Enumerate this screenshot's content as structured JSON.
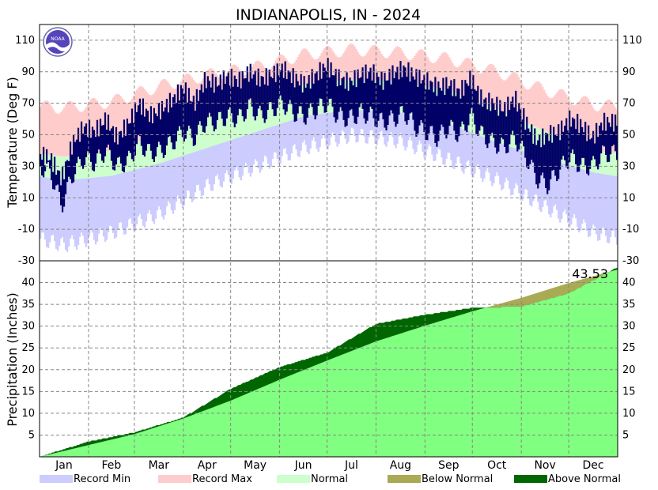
{
  "chart_data": [
    {
      "type": "bar",
      "panel": "temperature",
      "title": "INDIANAPOLIS, IN - 2024",
      "ylabel": "Temperature (Deg F)",
      "ylim": [
        -30,
        120
      ],
      "yticks": [
        -30,
        -10,
        10,
        30,
        50,
        70,
        90,
        110
      ],
      "month_labels": [
        "Jan",
        "Feb",
        "Mar",
        "Apr",
        "May",
        "Jun",
        "Jul",
        "Aug",
        "Sep",
        "Oct",
        "Nov",
        "Dec"
      ],
      "normal_high_by_month": [
        36,
        40,
        51,
        63,
        73,
        82,
        85,
        84,
        78,
        66,
        52,
        40
      ],
      "normal_low_by_month": [
        21,
        24,
        32,
        42,
        52,
        62,
        66,
        64,
        57,
        45,
        35,
        26
      ],
      "record_max_by_month": [
        67,
        71,
        81,
        88,
        93,
        101,
        104,
        102,
        98,
        90,
        78,
        69
      ],
      "record_min_by_month": [
        -20,
        -12,
        0,
        18,
        30,
        42,
        50,
        46,
        34,
        21,
        4,
        -12
      ],
      "observed_high_weekly": [
        38,
        35,
        22,
        45,
        55,
        52,
        60,
        48,
        57,
        70,
        62,
        66,
        72,
        80,
        70,
        85,
        82,
        87,
        84,
        90,
        85,
        88,
        92,
        86,
        82,
        88,
        94,
        86,
        83,
        88,
        90,
        84,
        89,
        92,
        87,
        84,
        80,
        82,
        77,
        86,
        72,
        70,
        66,
        73,
        58,
        46,
        50,
        52,
        60,
        56,
        48,
        58
      ],
      "observed_low_weekly": [
        30,
        26,
        5,
        25,
        35,
        32,
        40,
        30,
        33,
        45,
        38,
        40,
        45,
        52,
        48,
        58,
        58,
        62,
        60,
        68,
        62,
        66,
        70,
        64,
        62,
        66,
        70,
        62,
        60,
        64,
        62,
        58,
        60,
        64,
        55,
        52,
        48,
        55,
        50,
        62,
        50,
        45,
        42,
        48,
        36,
        22,
        18,
        28,
        36,
        30,
        30,
        38
      ],
      "series": [
        {
          "name": "Record Min",
          "color": "#ccccff"
        },
        {
          "name": "Record Max",
          "color": "#ffcccc"
        },
        {
          "name": "Normal",
          "color": "#ccffcc"
        }
      ],
      "observed_color": "#000066"
    },
    {
      "type": "area",
      "panel": "precipitation",
      "ylabel": "Precipitation (Inches)",
      "ylim": [
        0,
        45
      ],
      "yticks": [
        5,
        10,
        15,
        20,
        25,
        30,
        35,
        40
      ],
      "annotation": "43.53",
      "month_labels": [
        "Jan",
        "Feb",
        "Mar",
        "Apr",
        "May",
        "Jun",
        "Jul",
        "Aug",
        "Sep",
        "Oct",
        "Nov",
        "Dec"
      ],
      "normal_cumulative_at_month_start": [
        0,
        2.7,
        5.2,
        8.8,
        12.9,
        17.7,
        22.1,
        26.5,
        30.1,
        33.4,
        36.5,
        39.9,
        43.0
      ],
      "observed_cumulative_at_month_start": [
        0,
        3.5,
        5.6,
        9.0,
        15.6,
        20.6,
        23.9,
        30.5,
        32.6,
        34.2,
        34.5,
        37.5,
        43.53
      ],
      "series": [
        {
          "name": "Below Normal",
          "color": "#aaaa55"
        },
        {
          "name": "Above Normal",
          "color": "#006600"
        }
      ],
      "normal_fill_color": "#80ff80"
    }
  ],
  "legend": [
    {
      "label": "Record Min",
      "color": "#ccccff"
    },
    {
      "label": "Record Max",
      "color": "#ffcccc"
    },
    {
      "label": "Normal",
      "color": "#ccffcc"
    },
    {
      "label": "Below Normal",
      "color": "#aaaa55"
    },
    {
      "label": "Above Normal",
      "color": "#006600"
    }
  ],
  "logo": {
    "text": "NOAA",
    "icon": "noaa-logo-icon"
  }
}
